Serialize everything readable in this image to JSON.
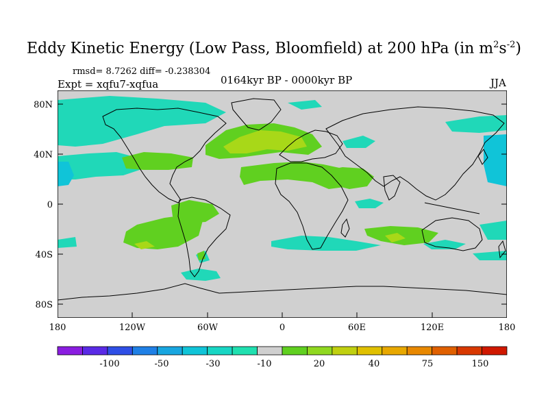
{
  "title": {
    "main": "Eddy Kinetic Energy (Low Pass, Bloomfield) at 200 hPa (in m",
    "sup1": "2",
    "mid": "s",
    "sup2": "-2",
    "close": ")"
  },
  "subtitle": {
    "stats": "rmsd= 8.7262 diff= -0.238304",
    "expt": "Expt = xqfu7-xqfua",
    "period": "0164kyr BP - 0000kyr BP",
    "season": "JJA"
  },
  "map": {
    "lat_labels": [
      "80N",
      "40N",
      "0",
      "40S",
      "80S"
    ],
    "lon_labels": [
      "180",
      "120W",
      "60W",
      "0",
      "60E",
      "120E",
      "180"
    ]
  },
  "colorbar": {
    "labels": [
      "-100",
      "-50",
      "-30",
      "-10",
      "20",
      "40",
      "75",
      "150"
    ],
    "colors": [
      "#8a1de0",
      "#5a2ae6",
      "#2f4fe6",
      "#1f80e6",
      "#18a6e0",
      "#10c4d8",
      "#18d6c4",
      "#20e0b0",
      "#d0d0d0",
      "#60d020",
      "#90d820",
      "#c0d010",
      "#e0c000",
      "#e8a800",
      "#e88800",
      "#e06000",
      "#d83800",
      "#d01800"
    ]
  },
  "colors": {
    "ocean_land": "#d0d0d0",
    "coast": "#000000"
  }
}
